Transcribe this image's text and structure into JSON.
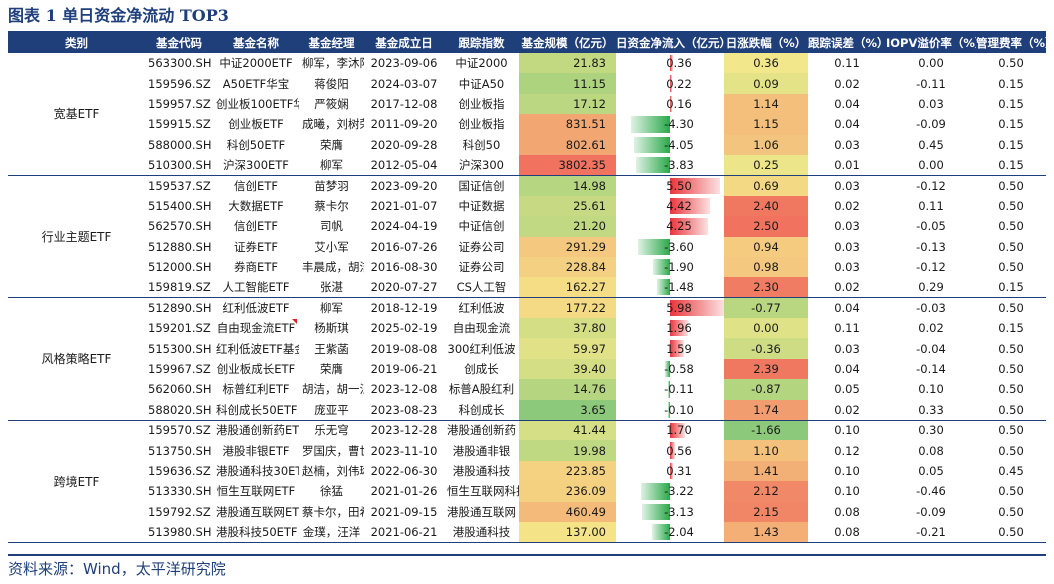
{
  "title": "图表 1  单日资金净流动 TOP3",
  "source": "资料来源：Wind，太平洋研究院",
  "headers": [
    "类别",
    "基金代码",
    "基金名称",
    "基金经理",
    "基金成立日",
    "跟踪指数",
    "基金规模（亿元）",
    "日资金净流入（亿元）",
    "日涨跌幅（%）",
    "跟踪误差（%）",
    "IOPV溢价率（%）",
    "管理费率（%）"
  ],
  "groups": [
    {
      "name": "宽基ETF",
      "rows": [
        {
          "code": "563300.SH",
          "name": "中证2000ETF",
          "manager": "柳军，李沐阳",
          "date": "2023-09-06",
          "index": "中证2000",
          "size": "21.83",
          "flow": "0.36",
          "flowv": 0.36,
          "chg": "0.36",
          "chgv": 0.36,
          "te": "0.11",
          "iopv": "0.00",
          "fee": "0.50"
        },
        {
          "code": "159596.SZ",
          "name": "A50ETF华宝",
          "manager": "蒋俊阳",
          "date": "2024-03-07",
          "index": "中证A50",
          "size": "11.15",
          "flow": "0.22",
          "flowv": 0.22,
          "chg": "0.09",
          "chgv": 0.09,
          "te": "0.02",
          "iopv": "-0.11",
          "fee": "0.15"
        },
        {
          "code": "159957.SZ",
          "name": "创业板100ETF华夏",
          "manager": "严筱娴",
          "date": "2017-12-08",
          "index": "创业板指",
          "size": "17.12",
          "flow": "0.16",
          "flowv": 0.16,
          "chg": "1.14",
          "chgv": 1.14,
          "te": "0.04",
          "iopv": "0.03",
          "fee": "0.15"
        },
        {
          "code": "159915.SZ",
          "name": "创业板ETF",
          "manager": "成曦，刘树荣",
          "date": "2011-09-20",
          "index": "创业板指",
          "size": "831.51",
          "flow": "-4.30",
          "flowv": -4.3,
          "chg": "1.15",
          "chgv": 1.15,
          "te": "0.04",
          "iopv": "-0.09",
          "fee": "0.15"
        },
        {
          "code": "588000.SH",
          "name": "科创50ETF",
          "manager": "荣膺",
          "date": "2020-09-28",
          "index": "科创50",
          "size": "802.61",
          "flow": "-4.05",
          "flowv": -4.05,
          "chg": "1.06",
          "chgv": 1.06,
          "te": "0.03",
          "iopv": "0.45",
          "fee": "0.15"
        },
        {
          "code": "510300.SH",
          "name": "沪深300ETF",
          "manager": "柳军",
          "date": "2012-05-04",
          "index": "沪深300",
          "size": "3802.35",
          "flow": "-3.83",
          "flowv": -3.83,
          "chg": "0.25",
          "chgv": 0.25,
          "te": "0.01",
          "iopv": "0.00",
          "fee": "0.15"
        }
      ]
    },
    {
      "name": "行业主题ETF",
      "rows": [
        {
          "code": "159537.SZ",
          "name": "信创ETF",
          "manager": "苗梦羽",
          "date": "2023-09-20",
          "index": "国证信创",
          "size": "14.98",
          "flow": "5.50",
          "flowv": 5.5,
          "chg": "0.69",
          "chgv": 0.69,
          "te": "0.03",
          "iopv": "-0.12",
          "fee": "0.50"
        },
        {
          "code": "515400.SH",
          "name": "大数据ETF",
          "manager": "蔡卡尔",
          "date": "2021-01-07",
          "index": "中证数据",
          "size": "25.61",
          "flow": "4.42",
          "flowv": 4.42,
          "chg": "2.40",
          "chgv": 2.4,
          "te": "0.02",
          "iopv": "0.11",
          "fee": "0.50"
        },
        {
          "code": "562570.SH",
          "name": "信创ETF",
          "manager": "司帆",
          "date": "2024-04-19",
          "index": "中证信创",
          "size": "21.20",
          "flow": "4.25",
          "flowv": 4.25,
          "chg": "2.50",
          "chgv": 2.5,
          "te": "0.03",
          "iopv": "-0.05",
          "fee": "0.50"
        },
        {
          "code": "512880.SH",
          "name": "证券ETF",
          "manager": "艾小军",
          "date": "2016-07-26",
          "index": "证券公司",
          "size": "291.29",
          "flow": "-3.60",
          "flowv": -3.6,
          "chg": "0.94",
          "chgv": 0.94,
          "te": "0.03",
          "iopv": "-0.13",
          "fee": "0.50"
        },
        {
          "code": "512000.SH",
          "name": "券商ETF",
          "manager": "丰晨成，胡洁",
          "date": "2016-08-30",
          "index": "证券公司",
          "size": "228.84",
          "flow": "-1.90",
          "flowv": -1.9,
          "chg": "0.98",
          "chgv": 0.98,
          "te": "0.03",
          "iopv": "-0.12",
          "fee": "0.50"
        },
        {
          "code": "159819.SZ",
          "name": "人工智能ETF",
          "manager": "张湛",
          "date": "2020-07-27",
          "index": "CS人工智",
          "size": "162.27",
          "flow": "-1.48",
          "flowv": -1.48,
          "chg": "2.30",
          "chgv": 2.3,
          "te": "0.02",
          "iopv": "0.29",
          "fee": "0.15"
        }
      ]
    },
    {
      "name": "风格策略ETF",
      "rows": [
        {
          "code": "512890.SH",
          "name": "红利低波ETF",
          "manager": "柳军",
          "date": "2018-12-19",
          "index": "红利低波",
          "size": "177.22",
          "flow": "5.98",
          "flowv": 5.98,
          "chg": "-0.77",
          "chgv": -0.77,
          "te": "0.04",
          "iopv": "-0.03",
          "fee": "0.50"
        },
        {
          "code": "159201.SZ",
          "name": "自由现金流ETF",
          "manager": "杨斯琪",
          "date": "2025-02-19",
          "index": "自由现金流",
          "size": "37.80",
          "flow": "1.96",
          "flowv": 1.96,
          "chg": "0.00",
          "chgv": 0.0,
          "te": "0.11",
          "iopv": "0.02",
          "fee": "0.15"
        },
        {
          "code": "515300.SH",
          "name": "红利低波ETF基金",
          "manager": "王紫菡",
          "date": "2019-08-08",
          "index": "300红利低波",
          "size": "59.97",
          "flow": "1.59",
          "flowv": 1.59,
          "chg": "-0.36",
          "chgv": -0.36,
          "te": "0.03",
          "iopv": "-0.04",
          "fee": "0.50"
        },
        {
          "code": "159967.SZ",
          "name": "创业板成长ETF",
          "manager": "荣膺",
          "date": "2019-06-21",
          "index": "创成长",
          "size": "39.40",
          "flow": "-0.58",
          "flowv": -0.58,
          "chg": "2.39",
          "chgv": 2.39,
          "te": "0.04",
          "iopv": "-0.14",
          "fee": "0.50"
        },
        {
          "code": "562060.SH",
          "name": "标普红利ETF",
          "manager": "胡洁，胡一江",
          "date": "2023-12-08",
          "index": "标普A股红利",
          "size": "14.76",
          "flow": "-0.11",
          "flowv": -0.11,
          "chg": "-0.87",
          "chgv": -0.87,
          "te": "0.05",
          "iopv": "0.10",
          "fee": "0.50"
        },
        {
          "code": "588020.SH",
          "name": "科创成长50ETF",
          "manager": "庞亚平",
          "date": "2023-08-23",
          "index": "科创成长",
          "size": "3.65",
          "flow": "-0.10",
          "flowv": -0.1,
          "chg": "1.74",
          "chgv": 1.74,
          "te": "0.02",
          "iopv": "0.33",
          "fee": "0.50"
        }
      ]
    },
    {
      "name": "跨境ETF",
      "rows": [
        {
          "code": "159570.SZ",
          "name": "港股通创新药ETF",
          "manager": "乐无穹",
          "date": "2023-12-28",
          "index": "港股通创新药",
          "size": "41.44",
          "flow": "1.70",
          "flowv": 1.7,
          "chg": "-1.66",
          "chgv": -1.66,
          "te": "0.10",
          "iopv": "0.30",
          "fee": "0.50"
        },
        {
          "code": "513750.SH",
          "name": "港股非银ETF",
          "manager": "罗国庆，曹世宇",
          "date": "2023-11-10",
          "index": "港股通非银",
          "size": "19.98",
          "flow": "0.56",
          "flowv": 0.56,
          "chg": "1.10",
          "chgv": 1.1,
          "te": "0.12",
          "iopv": "0.08",
          "fee": "0.50"
        },
        {
          "code": "159636.SZ",
          "name": "港股通科技30ETF",
          "manager": "赵楠，刘伟琳",
          "date": "2022-06-30",
          "index": "港股通科技",
          "size": "223.85",
          "flow": "0.31",
          "flowv": 0.31,
          "chg": "1.41",
          "chgv": 1.41,
          "te": "0.10",
          "iopv": "0.05",
          "fee": "0.45"
        },
        {
          "code": "513330.SH",
          "name": "恒生互联网ETF",
          "manager": "徐猛",
          "date": "2021-01-26",
          "index": "恒生互联网科技业",
          "size": "236.09",
          "flow": "-3.22",
          "flowv": -3.22,
          "chg": "2.12",
          "chgv": 2.12,
          "te": "0.10",
          "iopv": "-0.46",
          "fee": "0.50"
        },
        {
          "code": "159792.SZ",
          "name": "港股通互联网ETF",
          "manager": "蔡卡尔，田希蒙",
          "date": "2021-09-15",
          "index": "港股通互联网",
          "size": "460.49",
          "flow": "-3.13",
          "flowv": -3.13,
          "chg": "2.15",
          "chgv": 2.15,
          "te": "0.08",
          "iopv": "-0.09",
          "fee": "0.50"
        },
        {
          "code": "513980.SH",
          "name": "港股科技50ETF",
          "manager": "金璞，汪洋",
          "date": "2021-06-21",
          "index": "港股通科技",
          "size": "137.00",
          "flow": "-2.04",
          "flowv": -2.04,
          "chg": "1.43",
          "chgv": 1.43,
          "te": "0.08",
          "iopv": "-0.21",
          "fee": "0.50"
        }
      ]
    }
  ],
  "colors": {
    "header": "#1f3f7a",
    "inflow": "#e8353a",
    "outflow": "#2aa84a",
    "scale_high": "#f0725f",
    "scale_mid": "#f5e88a",
    "scale_low": "#8cc97a"
  }
}
